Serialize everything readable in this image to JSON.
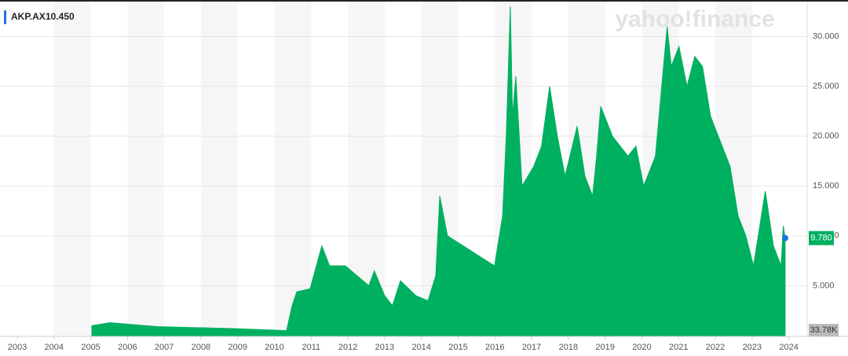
{
  "chart_data": {
    "type": "area",
    "quote_label": "10.450",
    "watermark": "yahoo!finance",
    "volume_label": "33.78K",
    "last_value": 9.78,
    "last_value_label": "9.780",
    "x": [
      2005.03,
      2005.52,
      2006.8,
      2008.94,
      2010.33,
      2010.48,
      2010.61,
      2010.97,
      2011.29,
      2011.5,
      2011.93,
      2012.57,
      2012.72,
      2013.0,
      2013.21,
      2013.43,
      2013.85,
      2014.18,
      2014.39,
      2014.5,
      2014.71,
      2015.14,
      2015.56,
      2015.99,
      2016.21,
      2016.31,
      2016.42,
      2016.48,
      2016.57,
      2016.74,
      2017.06,
      2017.27,
      2017.49,
      2017.7,
      2017.91,
      2018.24,
      2018.45,
      2018.66,
      2018.77,
      2018.88,
      2019.2,
      2019.62,
      2019.84,
      2020.05,
      2020.37,
      2020.59,
      2020.69,
      2020.8,
      2021.01,
      2021.23,
      2021.44,
      2021.65,
      2021.87,
      2022.08,
      2022.4,
      2022.62,
      2022.83,
      2023.04,
      2023.36,
      2023.58,
      2023.79,
      2023.85,
      2023.9
    ],
    "series": [
      {
        "name": "AKP.AX",
        "color": "#00b061",
        "values": [
          1.0,
          1.3,
          0.9,
          0.7,
          0.5,
          3.0,
          4.4,
          4.7,
          9.0,
          7,
          7,
          5,
          6.5,
          4,
          3,
          5.5,
          4,
          3.5,
          6,
          14,
          10,
          9,
          8,
          7,
          12,
          20,
          33,
          22,
          26,
          15,
          17,
          19,
          25,
          20,
          16,
          21,
          16,
          14,
          18,
          23,
          20,
          18,
          19,
          15,
          18,
          27,
          31,
          27,
          29,
          25,
          28,
          27,
          22,
          20,
          17,
          12,
          10,
          7,
          14.5,
          9,
          7,
          11,
          9.78
        ]
      }
    ],
    "xlim": [
      2002.53,
      2024.5
    ],
    "xticks": [
      2003,
      2004,
      2005,
      2006,
      2007,
      2008,
      2009,
      2010,
      2011,
      2012,
      2013,
      2014,
      2015,
      2016,
      2017,
      2018,
      2019,
      2020,
      2021,
      2022,
      2023,
      2024
    ],
    "ylim": [
      0,
      33.5
    ],
    "yticks": [
      {
        "value": 5,
        "label": "5.000"
      },
      {
        "value": 10,
        "label": "10.000"
      },
      {
        "value": 15,
        "label": "15.000"
      },
      {
        "value": 20,
        "label": "20.000"
      },
      {
        "value": 25,
        "label": "25.000"
      },
      {
        "value": 30,
        "label": "30.000"
      }
    ],
    "grid": true
  }
}
